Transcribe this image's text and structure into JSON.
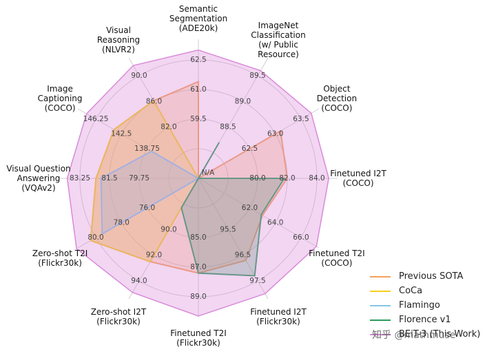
{
  "chart_data": {
    "type": "radar",
    "axes": [
      {
        "label": "Semantic\nSegmentation\n(ADE20k)",
        "ticks": [
          "59.5",
          "61.0",
          "62.5"
        ]
      },
      {
        "label": "ImageNet\nClassification\n(w/ Public\nResource)",
        "ticks": [
          "88.5",
          "89.0",
          "89.5"
        ]
      },
      {
        "label": "Object\nDetection\n(COCO)",
        "ticks": [
          "62.5",
          "63.0",
          "63.5"
        ]
      },
      {
        "label": "Finetuned I2T\n(COCO)",
        "ticks": [
          "80.0",
          "82.0",
          "84.0"
        ]
      },
      {
        "label": "Finetuned T2I\n(COCO)",
        "ticks": [
          "62.0",
          "64.0",
          "66.0"
        ]
      },
      {
        "label": "Finetuned I2T\n(Flickr30k)",
        "ticks": [
          "95.5",
          "96.5",
          "97.5"
        ]
      },
      {
        "label": "Finetuned T2I\n(Flickr30k)",
        "ticks": [
          "85.0",
          "87.0",
          "89.0"
        ]
      },
      {
        "label": "Zero-shot I2T\n(Flickr30k)",
        "ticks": [
          "90.0",
          "92.0",
          "94.0"
        ]
      },
      {
        "label": "Zero-shot T2I\n(Flickr30k)",
        "ticks": [
          "76.0",
          "78.0",
          "80.0"
        ]
      },
      {
        "label": "Visual Question\nAnswering\n(VQAv2)",
        "ticks": [
          "79.75",
          "81.5",
          "83.25"
        ]
      },
      {
        "label": "Image\nCaptioning\n(COCO)",
        "ticks": [
          "138.75",
          "142.5",
          "146.25"
        ]
      },
      {
        "label": "Visual\nReasoning\n(NLVR2)",
        "ticks": [
          "82.0",
          "86.0",
          "90.0"
        ]
      }
    ],
    "center_label": "N/A",
    "series": [
      {
        "name": "Previous SOTA",
        "color": "#f5a15a",
        "values": [
          61.4,
          null,
          63.1,
          82.0,
          63.0,
          96.7,
          87.4,
          92.5,
          80.4,
          82.3,
          143.6,
          86.1
        ]
      },
      {
        "name": "CoCa",
        "color": "#f5d020",
        "values": [
          null,
          null,
          null,
          null,
          null,
          null,
          null,
          92.5,
          80.4,
          82.3,
          143.6,
          86.1
        ]
      },
      {
        "name": "Flamingo",
        "color": "#86c5e6",
        "values": [
          null,
          null,
          null,
          null,
          null,
          null,
          null,
          null,
          79.5,
          82.0,
          138.1,
          null
        ]
      },
      {
        "name": "Florence v1",
        "color": "#2a9d5a",
        "values": [
          null,
          88.2,
          null,
          81.8,
          62.9,
          97.3,
          87.4,
          88.3,
          null,
          null,
          null,
          null
        ]
      },
      {
        "name": "BEiT-3 (This Work)",
        "color": "#d98ad9",
        "values": [
          63.0,
          89.6,
          63.7,
          84.8,
          67.2,
          98.0,
          90.3,
          94.9,
          81.5,
          84.0,
          147.6,
          91.6
        ]
      }
    ]
  },
  "legend": {
    "items": [
      {
        "label": "Previous SOTA",
        "color": "#f5a15a"
      },
      {
        "label": "CoCa",
        "color": "#f5d020"
      },
      {
        "label": "Flamingo",
        "color": "#86c5e6"
      },
      {
        "label": "Florence v1",
        "color": "#2a9d5a"
      },
      {
        "label": "BEiT-3 (This Work)",
        "color": "#d98ad9"
      }
    ]
  },
  "watermark": "知乎 @mathmuse"
}
